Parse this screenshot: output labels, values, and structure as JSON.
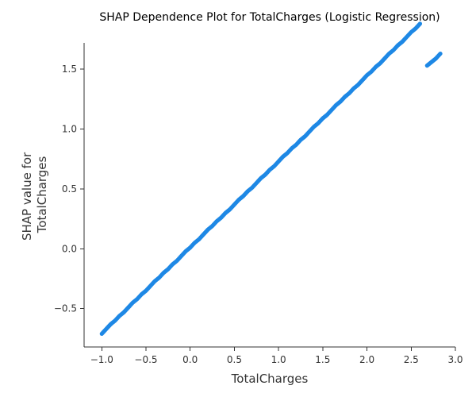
{
  "chart_data": {
    "type": "scatter",
    "title": "SHAP Dependence Plot for TotalCharges (Logistic Regression)",
    "xlabel": "TotalCharges",
    "ylabel_lines": [
      "SHAP value for",
      "TotalCharges"
    ],
    "xlim": [
      -1.2,
      3.0
    ],
    "ylim": [
      -0.82,
      1.72
    ],
    "xticks": [
      -1.0,
      -0.5,
      0.0,
      0.5,
      1.0,
      1.5,
      2.0,
      2.5,
      3.0
    ],
    "xtick_labels": [
      "−1.0",
      "−0.5",
      "0.0",
      "0.5",
      "1.0",
      "1.5",
      "2.0",
      "2.5",
      "3.0"
    ],
    "yticks": [
      -0.5,
      0.0,
      0.5,
      1.0,
      1.5
    ],
    "ytick_labels": [
      "−0.5",
      "0.0",
      "0.5",
      "1.0",
      "1.5"
    ],
    "grid": false,
    "point_color": "#1e88e5",
    "series": [
      {
        "x": [
          -1.0,
          -0.95,
          -0.9,
          -0.85,
          -0.8,
          -0.75,
          -0.7,
          -0.65,
          -0.6,
          -0.55,
          -0.5,
          -0.45,
          -0.4,
          -0.35,
          -0.3,
          -0.25,
          -0.2,
          -0.15,
          -0.1,
          -0.05,
          0.0,
          0.05,
          0.1,
          0.15,
          0.2,
          0.25,
          0.3,
          0.35,
          0.4,
          0.45,
          0.5,
          0.55,
          0.6,
          0.65,
          0.7,
          0.75,
          0.8,
          0.85,
          0.9,
          0.95,
          1.0,
          1.05,
          1.1,
          1.15,
          1.2,
          1.25,
          1.3,
          1.35,
          1.4,
          1.45,
          1.5,
          1.55,
          1.6,
          1.65,
          1.7,
          1.75,
          1.8,
          1.85,
          1.9,
          1.95,
          2.0,
          2.05,
          2.1,
          2.15,
          2.2,
          2.25,
          2.3,
          2.35,
          2.4,
          2.45,
          2.5,
          2.55,
          2.6,
          2.68,
          2.73,
          2.78,
          2.83
        ],
        "y": [
          -0.71,
          -0.67,
          -0.63,
          -0.6,
          -0.56,
          -0.53,
          -0.49,
          -0.45,
          -0.42,
          -0.38,
          -0.35,
          -0.31,
          -0.27,
          -0.24,
          -0.2,
          -0.17,
          -0.13,
          -0.1,
          -0.06,
          -0.02,
          0.01,
          0.05,
          0.08,
          0.12,
          0.16,
          0.19,
          0.23,
          0.26,
          0.3,
          0.33,
          0.37,
          0.41,
          0.44,
          0.48,
          0.51,
          0.55,
          0.59,
          0.62,
          0.66,
          0.69,
          0.73,
          0.77,
          0.8,
          0.84,
          0.87,
          0.91,
          0.94,
          0.98,
          1.02,
          1.05,
          1.09,
          1.12,
          1.16,
          1.2,
          1.23,
          1.27,
          1.3,
          1.34,
          1.37,
          1.41,
          1.45,
          1.48,
          1.52,
          1.55,
          1.59,
          1.63,
          1.66,
          1.7,
          1.73,
          1.77,
          1.81,
          1.84,
          1.88,
          1.53,
          1.56,
          1.59,
          1.63
        ]
      }
    ]
  }
}
